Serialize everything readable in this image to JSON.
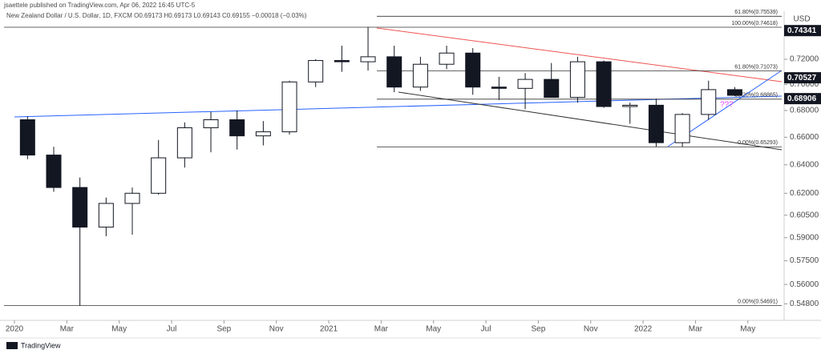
{
  "header": {
    "publisher": "jsaettele published on TradingView.com, Apr 06, 2022 16:45 UTC-5",
    "legend": "New Zealand Dollar / U.S. Dollar, 1D, FXCM  O0.69173 H0.69173 L0.69143 C0.69155 −0.00018 (−0.03%)"
  },
  "footer": {
    "brand": "TradingView"
  },
  "chart_data": {
    "type": "candlestick",
    "currency": "USD",
    "color": "#131722",
    "log_scale": true,
    "candles": {
      "x": [
        "2020-01",
        "2020-02",
        "2020-03",
        "2020-04",
        "2020-05",
        "2020-06",
        "2020-07",
        "2020-08",
        "2020-09",
        "2020-10",
        "2020-11",
        "2020-12",
        "2021-01",
        "2021-02",
        "2021-03",
        "2021-04",
        "2021-05",
        "2021-06",
        "2021-07",
        "2021-08",
        "2021-09",
        "2021-10",
        "2021-11",
        "2021-12",
        "2022-01",
        "2022-02",
        "2022-03",
        "2022-04"
      ],
      "open": [
        0.673,
        0.647,
        0.624,
        0.597,
        0.613,
        0.62,
        0.645,
        0.667,
        0.673,
        0.661,
        0.664,
        0.702,
        0.719,
        0.718,
        0.722,
        0.698,
        0.716,
        0.725,
        0.698,
        0.697,
        0.704,
        0.69,
        0.718,
        0.683,
        0.684,
        0.656,
        0.677,
        0.696
      ],
      "high": [
        0.6756,
        0.653,
        0.631,
        0.617,
        0.624,
        0.658,
        0.671,
        0.679,
        0.68,
        0.672,
        0.703,
        0.72,
        0.731,
        0.7465,
        0.731,
        0.722,
        0.731,
        0.729,
        0.706,
        0.709,
        0.717,
        0.722,
        0.719,
        0.686,
        0.689,
        0.678,
        0.703,
        0.698
      ],
      "low": [
        0.644,
        0.621,
        0.5469,
        0.591,
        0.592,
        0.619,
        0.638,
        0.649,
        0.651,
        0.654,
        0.662,
        0.698,
        0.71,
        0.711,
        0.694,
        0.695,
        0.712,
        0.692,
        0.688,
        0.681,
        0.691,
        0.686,
        0.682,
        0.67,
        0.653,
        0.653,
        0.673,
        0.691
      ],
      "close": [
        0.647,
        0.624,
        0.597,
        0.613,
        0.62,
        0.645,
        0.667,
        0.673,
        0.661,
        0.664,
        0.702,
        0.719,
        0.718,
        0.722,
        0.698,
        0.716,
        0.725,
        0.698,
        0.697,
        0.704,
        0.69,
        0.718,
        0.683,
        0.684,
        0.656,
        0.677,
        0.696,
        0.6916
      ]
    },
    "ylim": [
      0.538,
      0.7556
    ],
    "yticks": [
      {
        "value": 0.72,
        "label": "0.72000"
      },
      {
        "value": 0.7,
        "label": "0.70000"
      },
      {
        "value": 0.68,
        "label": "0.68000"
      },
      {
        "value": 0.66,
        "label": "0.66000"
      },
      {
        "value": 0.64,
        "label": "0.64000"
      },
      {
        "value": 0.62,
        "label": "0.62000"
      },
      {
        "value": 0.605,
        "label": "0.60500"
      },
      {
        "value": 0.59,
        "label": "0.59000"
      },
      {
        "value": 0.575,
        "label": "0.57500"
      },
      {
        "value": 0.56,
        "label": "0.56000"
      },
      {
        "value": 0.548,
        "label": "0.54800"
      }
    ],
    "xticks": [
      {
        "value": "2020-01",
        "label": "2020"
      },
      {
        "value": "2020-03",
        "label": "Mar"
      },
      {
        "value": "2020-05",
        "label": "May"
      },
      {
        "value": "2020-07",
        "label": "Jul"
      },
      {
        "value": "2020-09",
        "label": "Sep"
      },
      {
        "value": "2020-11",
        "label": "Nov"
      },
      {
        "value": "2021-01",
        "label": "2021"
      },
      {
        "value": "2021-03",
        "label": "Mar"
      },
      {
        "value": "2021-05",
        "label": "May"
      },
      {
        "value": "2021-07",
        "label": "Jul"
      },
      {
        "value": "2021-09",
        "label": "Sep"
      },
      {
        "value": "2021-11",
        "label": "Nov"
      },
      {
        "value": "2022-01",
        "label": "2022"
      },
      {
        "value": "2022-03",
        "label": "Mar"
      },
      {
        "value": "2022-05",
        "label": "May"
      }
    ],
    "levels": [
      {
        "label": "61.80%(0.75539)",
        "value": 0.75539
      },
      {
        "label": "100.00%(0.74618)",
        "value": 0.74618
      },
      {
        "label": "61.80%(0.71073)",
        "value": 0.71073
      },
      {
        "label": "38.20%(0.68865)",
        "value": 0.68865
      },
      {
        "label": "0.00%(0.65293)",
        "value": 0.65293
      },
      {
        "label": "0.00%(0.54691)",
        "value": 0.54691
      }
    ],
    "price_labels": [
      {
        "value": 0.74341,
        "label": "0.74341"
      },
      {
        "value": 0.70527,
        "label": "0.70527"
      },
      {
        "value": 0.68906,
        "label": "0.68906"
      }
    ],
    "annotations": [
      {
        "text": "???",
        "color": "#e040fb"
      }
    ]
  }
}
